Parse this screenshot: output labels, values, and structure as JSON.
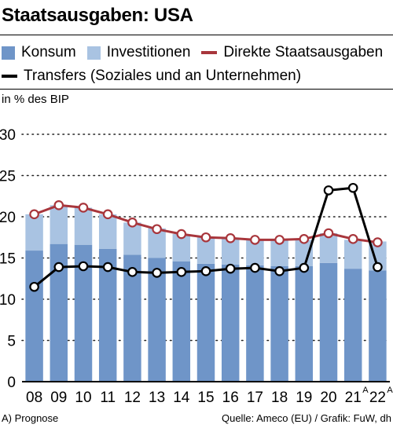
{
  "title": "Staatsausgaben: USA",
  "legend": [
    {
      "label": "Konsum",
      "kind": "box",
      "color": "#6f95c8"
    },
    {
      "label": "Investitionen",
      "kind": "box",
      "color": "#a9c3e2"
    },
    {
      "label": "Direkte Staatsausgaben",
      "kind": "line",
      "color": "#a8363c"
    },
    {
      "label": "Transfers (Soziales und an Unternehmen)",
      "kind": "line",
      "color": "#000000"
    }
  ],
  "unit_label": "in % des BIP",
  "footnote": "A) Prognose",
  "source": "Quelle: Ameco (EU) / Grafik: FuW, dh",
  "chart_data": {
    "type": "bar",
    "stacked": true,
    "categories": [
      "08",
      "09",
      "10",
      "11",
      "12",
      "13",
      "14",
      "15",
      "16",
      "17",
      "18",
      "19",
      "20",
      "21",
      "22"
    ],
    "category_superscripts": [
      "",
      "",
      "",
      "",
      "",
      "",
      "",
      "",
      "",
      "",
      "",
      "",
      "",
      "A",
      "A"
    ],
    "ylim": [
      0,
      30
    ],
    "yticks": [
      0,
      5,
      10,
      15,
      20,
      25,
      30
    ],
    "grid": true,
    "series": [
      {
        "name": "Konsum",
        "type": "bar",
        "color": "#6f95c8",
        "values": [
          15.9,
          16.7,
          16.6,
          16.1,
          15.4,
          15.0,
          14.6,
          14.3,
          14.2,
          14.1,
          14.0,
          14.0,
          14.4,
          13.7,
          13.5
        ]
      },
      {
        "name": "Investitionen",
        "type": "bar",
        "color": "#a9c3e2",
        "values": [
          4.4,
          4.7,
          4.5,
          4.2,
          3.9,
          3.6,
          3.3,
          3.2,
          3.2,
          3.1,
          3.2,
          3.2,
          3.6,
          3.5,
          3.5
        ]
      },
      {
        "name": "Direkte Staatsausgaben",
        "type": "line",
        "color": "#a8363c",
        "values": [
          20.3,
          21.4,
          21.1,
          20.3,
          19.3,
          18.5,
          17.9,
          17.5,
          17.4,
          17.2,
          17.2,
          17.3,
          18.0,
          17.3,
          16.9
        ]
      },
      {
        "name": "Transfers (Soziales und an Unternehmen)",
        "type": "line",
        "color": "#000000",
        "values": [
          11.5,
          13.9,
          14.0,
          13.9,
          13.3,
          13.2,
          13.3,
          13.4,
          13.7,
          13.8,
          13.4,
          13.8,
          23.2,
          23.5,
          13.9
        ]
      }
    ]
  }
}
